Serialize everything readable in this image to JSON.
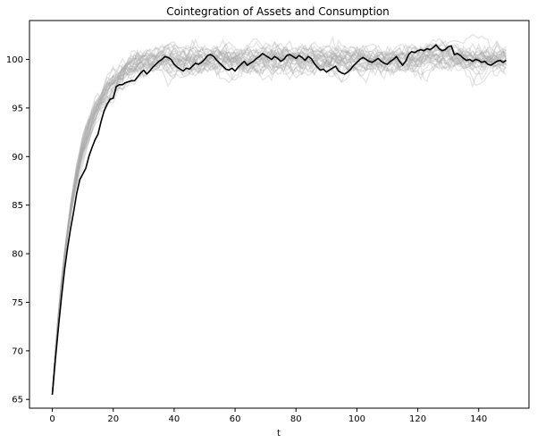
{
  "chart_data": {
    "type": "line",
    "title": "Cointegration of Assets and Consumption",
    "xlabel": "t",
    "ylabel": "",
    "xlim": [
      -7.5,
      156.5
    ],
    "ylim": [
      64.1,
      104.0
    ],
    "xticks": [
      0,
      20,
      40,
      60,
      80,
      100,
      120,
      140
    ],
    "yticks": [
      65,
      70,
      75,
      80,
      85,
      90,
      95,
      100
    ],
    "grid": false,
    "legend": "none",
    "simulations": {
      "count": 30,
      "n_points": 150,
      "start": 65.5,
      "long_run_mean": 100,
      "color": "#aaaaaa",
      "opacity": 0.3
    },
    "highlight_series": {
      "color": "#000000",
      "x_step": 1,
      "values": [
        65.5,
        69.1,
        72.4,
        75.5,
        78.3,
        80.6,
        82.6,
        84.3,
        86.2,
        87.6,
        88.2,
        88.8,
        90.0,
        90.9,
        91.7,
        92.3,
        93.6,
        94.7,
        95.4,
        95.9,
        96.0,
        97.2,
        97.4,
        97.4,
        97.6,
        97.7,
        97.8,
        97.8,
        98.2,
        98.6,
        98.9,
        98.5,
        98.8,
        99.2,
        99.5,
        99.8,
        100.0,
        100.3,
        100.2,
        100.0,
        99.5,
        99.2,
        99.0,
        98.8,
        99.1,
        99.0,
        99.3,
        99.6,
        99.5,
        99.7,
        100.0,
        100.4,
        100.5,
        100.3,
        99.9,
        99.6,
        99.3,
        99.0,
        98.9,
        99.1,
        98.8,
        99.2,
        99.5,
        99.8,
        99.4,
        99.6,
        99.8,
        100.1,
        100.3,
        100.6,
        100.4,
        100.2,
        100.0,
        100.3,
        100.1,
        99.8,
        100.0,
        100.4,
        100.5,
        100.3,
        100.1,
        100.4,
        100.2,
        99.9,
        100.3,
        100.1,
        99.6,
        99.2,
        98.9,
        99.0,
        98.7,
        98.9,
        99.1,
        99.3,
        98.8,
        98.6,
        98.5,
        98.7,
        99.0,
        99.4,
        99.7,
        100.0,
        100.2,
        100.0,
        99.8,
        99.7,
        99.9,
        100.1,
        99.8,
        99.6,
        99.5,
        99.8,
        100.0,
        100.3,
        99.8,
        99.4,
        99.8,
        100.5,
        100.8,
        100.7,
        100.9,
        101.0,
        100.9,
        101.1,
        101.0,
        101.2,
        101.5,
        101.1,
        100.9,
        101.0,
        101.3,
        101.4,
        100.5,
        100.6,
        100.4,
        100.1,
        99.9,
        100.0,
        99.8,
        100.0,
        99.9,
        99.7,
        99.8,
        99.5,
        99.4,
        99.6,
        99.8,
        99.9,
        99.7,
        99.9
      ]
    }
  }
}
